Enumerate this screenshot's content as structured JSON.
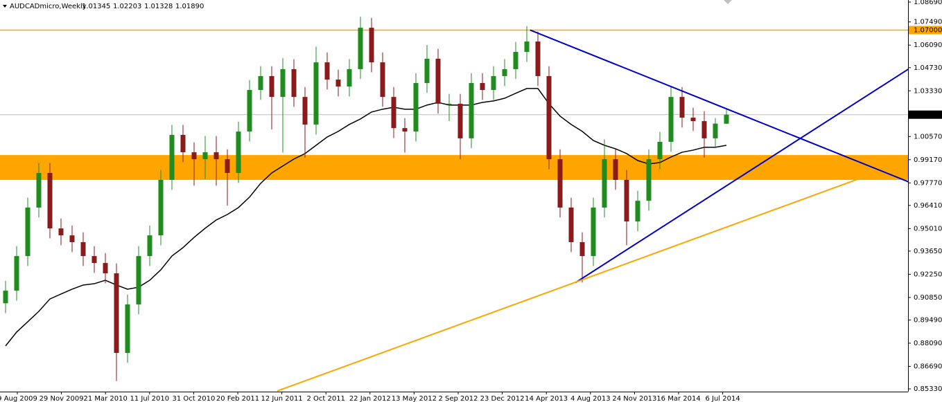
{
  "chart_data": {
    "type": "candlestick",
    "title": "AUDCADmicro,Weekly",
    "quote": [
      "1.01345",
      "1.02203",
      "1.01328",
      "1.01890"
    ],
    "up_color": "#1e8c1e",
    "down_color": "#8b1a1a",
    "candles": [
      [
        0.905,
        0.9186,
        0.899,
        0.9126
      ],
      [
        0.9126,
        0.9395,
        0.9066,
        0.9335
      ],
      [
        0.9335,
        0.9688,
        0.9275,
        0.9628
      ],
      [
        0.9628,
        0.9897,
        0.9568,
        0.9837
      ],
      [
        0.9837,
        0.9897,
        0.9442,
        0.9502
      ],
      [
        0.9502,
        0.9562,
        0.94,
        0.946
      ],
      [
        0.946,
        0.952,
        0.9359,
        0.9419
      ],
      [
        0.9419,
        0.9479,
        0.9275,
        0.9335
      ],
      [
        0.9335,
        0.9395,
        0.9233,
        0.9293
      ],
      [
        0.9293,
        0.9353,
        0.9171,
        0.9231
      ],
      [
        0.9231,
        0.9291,
        0.858,
        0.875
      ],
      [
        0.875,
        0.9103,
        0.869,
        0.9043
      ],
      [
        0.9043,
        0.9395,
        0.8983,
        0.9335
      ],
      [
        0.9335,
        0.952,
        0.9275,
        0.946
      ],
      [
        0.946,
        0.9855,
        0.94,
        0.9795
      ],
      [
        0.9795,
        1.0127,
        0.9735,
        1.0067
      ],
      [
        1.0067,
        1.0127,
        0.9902,
        0.9962
      ],
      [
        0.9962,
        1.0022,
        0.976,
        0.992
      ],
      [
        0.992,
        1.006,
        0.98,
        0.9962
      ],
      [
        0.9962,
        1.006,
        0.976,
        0.992
      ],
      [
        0.992,
        0.998,
        0.964,
        0.9837
      ],
      [
        0.9837,
        1.0147,
        0.9777,
        1.0087
      ],
      [
        1.0087,
        1.0398,
        1.0027,
        1.0338
      ],
      [
        1.0338,
        1.0482,
        1.0278,
        1.0422
      ],
      [
        1.0422,
        1.0482,
        1.01,
        1.0296
      ],
      [
        1.0296,
        1.053,
        0.996,
        1.0464
      ],
      [
        1.0464,
        1.0524,
        1.0236,
        1.0296
      ],
      [
        1.0296,
        1.0356,
        0.993,
        1.0129
      ],
      [
        1.0129,
        1.06,
        1.0069,
        1.0505
      ],
      [
        1.0505,
        1.0565,
        1.0341,
        1.0401
      ],
      [
        1.0401,
        1.0461,
        1.0299,
        1.0359
      ],
      [
        1.0359,
        1.0524,
        1.0299,
        1.0464
      ],
      [
        1.0464,
        1.078,
        1.0404,
        1.0714
      ],
      [
        1.0714,
        1.0774,
        1.0445,
        1.0505
      ],
      [
        1.0505,
        1.0565,
        1.0236,
        1.0296
      ],
      [
        1.0296,
        1.0356,
        1.0048,
        1.0108
      ],
      [
        1.0108,
        1.0168,
        0.996,
        1.0087
      ],
      [
        1.0087,
        1.044,
        1.0027,
        1.038
      ],
      [
        1.038,
        1.061,
        1.032,
        1.0527
      ],
      [
        1.0527,
        1.0587,
        1.0195,
        1.0255
      ],
      [
        1.0255,
        1.0315,
        1.015,
        1.0255
      ],
      [
        1.0255,
        1.0315,
        0.992,
        1.0046
      ],
      [
        1.0046,
        1.044,
        0.9986,
        1.038
      ],
      [
        1.038,
        1.044,
        1.0278,
        1.0338
      ],
      [
        1.0338,
        1.0482,
        1.0278,
        1.0422
      ],
      [
        1.0422,
        1.0524,
        1.0362,
        1.0464
      ],
      [
        1.0464,
        1.0628,
        1.0404,
        1.0568
      ],
      [
        1.0568,
        1.0724,
        1.0508,
        1.0631
      ],
      [
        1.0631,
        1.0691,
        1.0362,
        1.0422
      ],
      [
        1.0422,
        1.0482,
        0.986,
        0.992
      ],
      [
        0.992,
        0.998,
        0.9568,
        0.9628
      ],
      [
        0.9628,
        0.9688,
        0.9359,
        0.9419
      ],
      [
        0.9419,
        0.9479,
        0.9175,
        0.9335
      ],
      [
        0.9335,
        0.9688,
        0.9275,
        0.9628
      ],
      [
        0.9628,
        1.004,
        0.9568,
        0.992
      ],
      [
        0.992,
        0.998,
        0.9735,
        0.9795
      ],
      [
        0.9795,
        0.9855,
        0.94,
        0.9544
      ],
      [
        0.9544,
        0.9729,
        0.9484,
        0.9669
      ],
      [
        0.9669,
        0.998,
        0.9609,
        0.992
      ],
      [
        0.992,
        1.0085,
        0.986,
        1.0025
      ],
      [
        1.0025,
        1.0356,
        0.9965,
        1.0296
      ],
      [
        1.0296,
        1.0356,
        1.0111,
        1.0171
      ],
      [
        1.0171,
        1.0231,
        1.009,
        1.015
      ],
      [
        1.015,
        1.021,
        0.993,
        1.0046
      ],
      [
        1.0046,
        1.0168,
        0.9986,
        1.0135
      ],
      [
        1.01345,
        1.02203,
        1.01328,
        1.0189
      ]
    ],
    "ma": {
      "color": "#000000",
      "values": [
        0.8792,
        0.8876,
        0.8938,
        0.9001,
        0.9076,
        0.9106,
        0.9135,
        0.916,
        0.9168,
        0.9189,
        0.916,
        0.9135,
        0.9147,
        0.9189,
        0.9252,
        0.9335,
        0.9386,
        0.9448,
        0.9503,
        0.9553,
        0.9586,
        0.9628,
        0.9691,
        0.9774,
        0.9837,
        0.9879,
        0.9921,
        0.9954,
        1.0004,
        1.0054,
        1.0088,
        1.013,
        1.0163,
        1.0205,
        1.0222,
        1.0234,
        1.0222,
        1.0222,
        1.0247,
        1.0263,
        1.0247,
        1.0247,
        1.0247,
        1.0263,
        1.0272,
        1.0288,
        1.0318,
        1.0347,
        1.0347,
        1.0255,
        1.018,
        1.013,
        1.0088,
        1.0033,
        1.0004,
        0.9983,
        0.9954,
        0.9912,
        0.9891,
        0.99,
        0.9933,
        0.9962,
        0.9975,
        0.9992,
        0.9992,
        1.0004
      ]
    },
    "zone": {
      "color": "#ffa500",
      "from": 0.9795,
      "to": 0.9945
    },
    "level": {
      "value": 1.07,
      "label": "1.07000",
      "color": "#ffa500"
    },
    "price_line": {
      "value": 1.0189,
      "label": "1.01890"
    },
    "trendlines": [
      {
        "color": "#0000cc",
        "from": [
          47.3,
          1.07
        ],
        "to": [
          81.4,
          0.9784
        ]
      },
      {
        "color": "#0000cc",
        "from": [
          51.4,
          0.9175
        ],
        "to": [
          81.4,
          1.0464
        ]
      },
      {
        "color": "#ffa500",
        "from": [
          24.5,
          0.852
        ],
        "to": [
          77.0,
          0.9803
        ]
      }
    ],
    "ylim": [
      0.8533,
      1.0869
    ],
    "yticks": [
      {
        "value": 1.0869,
        "label": "1.08690"
      },
      {
        "value": 1.0749,
        "label": "1.07490"
      },
      {
        "value": 1.0609,
        "label": "1.06090"
      },
      {
        "value": 1.0473,
        "label": "1.04730"
      },
      {
        "value": 1.0333,
        "label": "1.03330"
      },
      {
        "value": 1.0057,
        "label": "1.00570"
      },
      {
        "value": 0.9917,
        "label": "0.99170"
      },
      {
        "value": 0.9777,
        "label": "0.97770"
      },
      {
        "value": 0.9641,
        "label": "0.96410"
      },
      {
        "value": 0.9501,
        "label": "0.95010"
      },
      {
        "value": 0.9365,
        "label": "0.93650"
      },
      {
        "value": 0.9225,
        "label": "0.92250"
      },
      {
        "value": 0.9085,
        "label": "0.90850"
      },
      {
        "value": 0.8949,
        "label": "0.89490"
      },
      {
        "value": 0.8809,
        "label": "0.88090"
      },
      {
        "value": 0.8669,
        "label": "0.86690"
      },
      {
        "value": 0.8533,
        "label": "0.85330"
      }
    ],
    "x_labels": [
      "9 Aug 2009",
      "29 Nov 2009",
      "21 Mar 2010",
      "11 Jul 2010",
      "31 Oct 2010",
      "20 Feb 2011",
      "12 Jun 2011",
      "2 Oct 2011",
      "22 Jan 2012",
      "13 May 2012",
      "2 Sep 2012",
      "23 Dec 2012",
      "14 Apr 2013",
      "4 Aug 2013",
      "24 Nov 2013",
      "16 Mar 2014",
      "6 Jul 2014"
    ]
  }
}
